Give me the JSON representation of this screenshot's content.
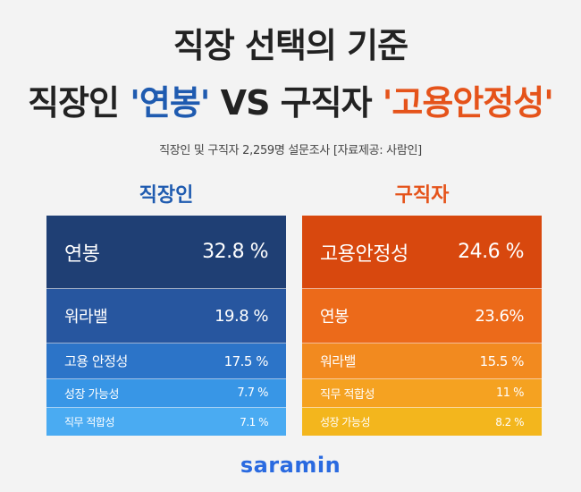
{
  "title": {
    "line1": "직장 선택의 기준",
    "line2_prefix": "직장인 ",
    "line2_highlight1": "'연봉'",
    "line2_mid": " VS 구직자 ",
    "line2_highlight2": "'고용안정성'"
  },
  "subtitle": "직장인 및 구직자 2,259명 설문조사  [자료제공: 사람인]",
  "columns": {
    "left": {
      "heading": "직장인",
      "rows": [
        {
          "label": "연봉",
          "value": "32.8 %",
          "color": "#1f3f74"
        },
        {
          "label": "워라밸",
          "value": "19.8 %",
          "color": "#27569f"
        },
        {
          "label": "고용 안정성",
          "value": "17.5 %",
          "color": "#2c74c8"
        },
        {
          "label": "성장 가능성",
          "value": "7.7 %",
          "color": "#3896e6"
        },
        {
          "label": "직무 적합성",
          "value": "7.1 %",
          "color": "#4aabf2"
        }
      ]
    },
    "right": {
      "heading": "구직자",
      "rows": [
        {
          "label": "고용안정성",
          "value": "24.6 %",
          "color": "#d8480e"
        },
        {
          "label": "연봉",
          "value": "23.6%",
          "color": "#ec6a1a"
        },
        {
          "label": "워라밸",
          "value": "15.5 %",
          "color": "#f28a1f"
        },
        {
          "label": "직무 적합성",
          "value": "11 %",
          "color": "#f5a221"
        },
        {
          "label": "성장 가능성",
          "value": "8.2 %",
          "color": "#f3b61d"
        }
      ]
    }
  },
  "logo": "saramin"
}
